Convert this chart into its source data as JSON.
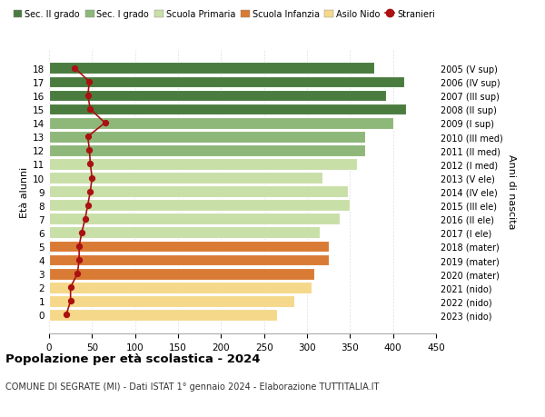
{
  "ages": [
    0,
    1,
    2,
    3,
    4,
    5,
    6,
    7,
    8,
    9,
    10,
    11,
    12,
    13,
    14,
    15,
    16,
    17,
    18
  ],
  "bar_values": [
    265,
    285,
    305,
    308,
    325,
    325,
    315,
    338,
    350,
    348,
    318,
    358,
    368,
    368,
    400,
    415,
    392,
    413,
    378
  ],
  "bar_colors": [
    "#f5d88a",
    "#f5d88a",
    "#f5d88a",
    "#d97b35",
    "#d97b35",
    "#d97b35",
    "#c8dfa8",
    "#c8dfa8",
    "#c8dfa8",
    "#c8dfa8",
    "#c8dfa8",
    "#c8dfa8",
    "#8db87a",
    "#8db87a",
    "#8db87a",
    "#4a7c3f",
    "#4a7c3f",
    "#4a7c3f",
    "#4a7c3f"
  ],
  "stranieri_values": [
    20,
    25,
    25,
    33,
    35,
    35,
    38,
    42,
    45,
    48,
    50,
    48,
    47,
    45,
    65,
    48,
    45,
    47,
    30
  ],
  "right_labels": [
    "2023 (nido)",
    "2022 (nido)",
    "2021 (nido)",
    "2020 (mater)",
    "2019 (mater)",
    "2018 (mater)",
    "2017 (I ele)",
    "2016 (II ele)",
    "2015 (III ele)",
    "2014 (IV ele)",
    "2013 (V ele)",
    "2012 (I med)",
    "2011 (II med)",
    "2010 (III med)",
    "2009 (I sup)",
    "2008 (II sup)",
    "2007 (III sup)",
    "2006 (IV sup)",
    "2005 (V sup)"
  ],
  "legend_labels": [
    "Sec. II grado",
    "Sec. I grado",
    "Scuola Primaria",
    "Scuola Infanzia",
    "Asilo Nido",
    "Stranieri"
  ],
  "legend_colors": [
    "#4a7c3f",
    "#8db87a",
    "#c8dfa8",
    "#d97b35",
    "#f5d88a",
    "#aa1111"
  ],
  "ylabel": "Età alunni",
  "right_ylabel": "Anni di nascita",
  "title": "Popolazione per età scolastica - 2024",
  "subtitle": "COMUNE DI SEGRATE (MI) - Dati ISTAT 1° gennaio 2024 - Elaborazione TUTTITALIA.IT",
  "xlim": [
    0,
    450
  ],
  "xticks": [
    0,
    50,
    100,
    150,
    200,
    250,
    300,
    350,
    400,
    450
  ],
  "background_color": "#ffffff",
  "grid_color": "#e0e0e0"
}
